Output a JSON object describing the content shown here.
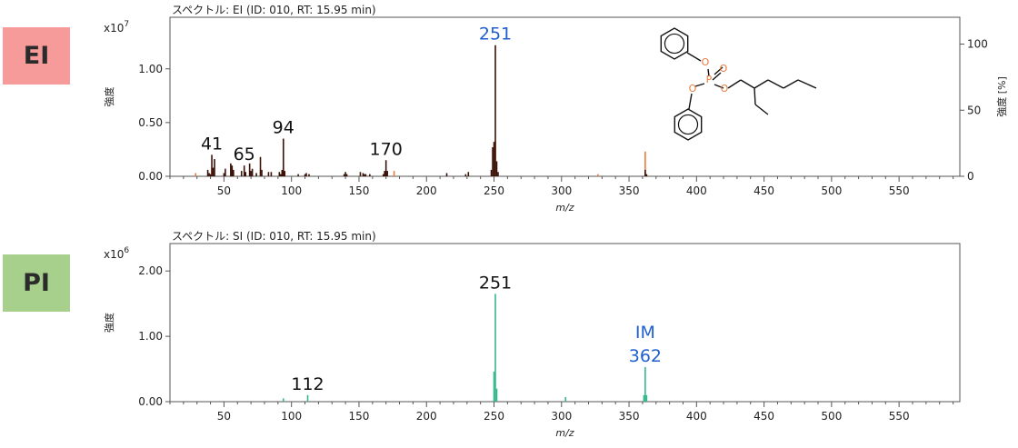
{
  "badges": {
    "ei": {
      "label": "EI",
      "color": "#f79a9a"
    },
    "pi": {
      "label": "PI",
      "color": "#a8d08d"
    }
  },
  "chart_data": [
    {
      "type": "bar",
      "title": "スペクトル: EI (ID: 010, RT: 15.95 min)",
      "xlabel": "m/z",
      "ylabel": "強度",
      "y2label": "強度 [%]",
      "y_multiplier": "x10",
      "y_multiplier_exp": "7",
      "xlim": [
        10,
        595
      ],
      "ylim": [
        0,
        1.48
      ],
      "y2lim": [
        0,
        120.3
      ],
      "xticks": [
        50,
        100,
        150,
        200,
        250,
        300,
        350,
        400,
        450,
        500,
        550
      ],
      "yticks": [
        0.0,
        0.5,
        1.0
      ],
      "ytick_labels": [
        "0.00",
        "0.50",
        "1.00"
      ],
      "y2ticks": [
        0,
        50,
        100
      ],
      "colors": {
        "measured": "#3a1208",
        "library": "#e87a3c",
        "highlight": "#1f5fd0"
      },
      "series": [
        {
          "name": "measured",
          "x": [
            38,
            39,
            40,
            41,
            42,
            43,
            50,
            51,
            55,
            56,
            57,
            63,
            65,
            66,
            69,
            70,
            71,
            74,
            77,
            78,
            83,
            85,
            91,
            92,
            93,
            94,
            95,
            105,
            110,
            111,
            113,
            139,
            140,
            141,
            151,
            153,
            154,
            155,
            158,
            168,
            169,
            170,
            171,
            215,
            229,
            231,
            248,
            249,
            250,
            251,
            252,
            253,
            362,
            363
          ],
          "values": [
            0.06,
            0.03,
            0.02,
            0.2,
            0.08,
            0.16,
            0.03,
            0.07,
            0.12,
            0.1,
            0.06,
            0.05,
            0.1,
            0.04,
            0.12,
            0.05,
            0.07,
            0.03,
            0.18,
            0.06,
            0.04,
            0.04,
            0.04,
            0.02,
            0.06,
            0.35,
            0.05,
            0.02,
            0.02,
            0.03,
            0.02,
            0.02,
            0.04,
            0.02,
            0.04,
            0.03,
            0.02,
            0.02,
            0.02,
            0.02,
            0.05,
            0.15,
            0.05,
            0.03,
            0.02,
            0.04,
            0.06,
            0.27,
            0.32,
            1.22,
            0.14,
            0.04,
            0.06,
            0.02
          ]
        },
        {
          "name": "library",
          "x": [
            29,
            41,
            57,
            77,
            94,
            176,
            251,
            327,
            362
          ],
          "values": [
            0.03,
            0.08,
            0.05,
            0.06,
            0.1,
            0.05,
            0.33,
            0.02,
            0.23
          ]
        }
      ],
      "annotations": [
        {
          "x": 41,
          "label": "41",
          "y": 0.2
        },
        {
          "x": 65,
          "label": "65",
          "y": 0.1
        },
        {
          "x": 94,
          "label": "94",
          "y": 0.35
        },
        {
          "x": 170,
          "label": "170",
          "y": 0.15
        },
        {
          "x": 251,
          "label": "251",
          "y": 1.22,
          "highlight": true
        }
      ],
      "structure": {
        "atom_O": "O",
        "atom_P": "P"
      }
    },
    {
      "type": "bar",
      "title": "スペクトル: SI (ID: 010, RT: 15.95 min)",
      "xlabel": "m/z",
      "ylabel": "強度",
      "y_multiplier": "x10",
      "y_multiplier_exp": "6",
      "xlim": [
        10,
        595
      ],
      "ylim": [
        0,
        2.42
      ],
      "xticks": [
        50,
        100,
        150,
        200,
        250,
        300,
        350,
        400,
        450,
        500,
        550
      ],
      "yticks": [
        0.0,
        1.0,
        2.0
      ],
      "ytick_labels": [
        "0.00",
        "1.00",
        "2.00"
      ],
      "colors": {
        "measured": "#35b78a",
        "highlight": "#1f5fd0"
      },
      "series": [
        {
          "name": "measured",
          "x": [
            94,
            112,
            250,
            251,
            252,
            303,
            361,
            362,
            363
          ],
          "values": [
            0.05,
            0.1,
            0.46,
            1.65,
            0.2,
            0.07,
            0.1,
            0.53,
            0.1
          ]
        }
      ],
      "annotations": [
        {
          "x": 112,
          "label": "112",
          "y": 0.1
        },
        {
          "x": 251,
          "label": "251",
          "y": 1.65
        },
        {
          "x": 362,
          "label": "362",
          "sublabel": "IM",
          "y": 0.53,
          "highlight": true
        }
      ]
    }
  ]
}
